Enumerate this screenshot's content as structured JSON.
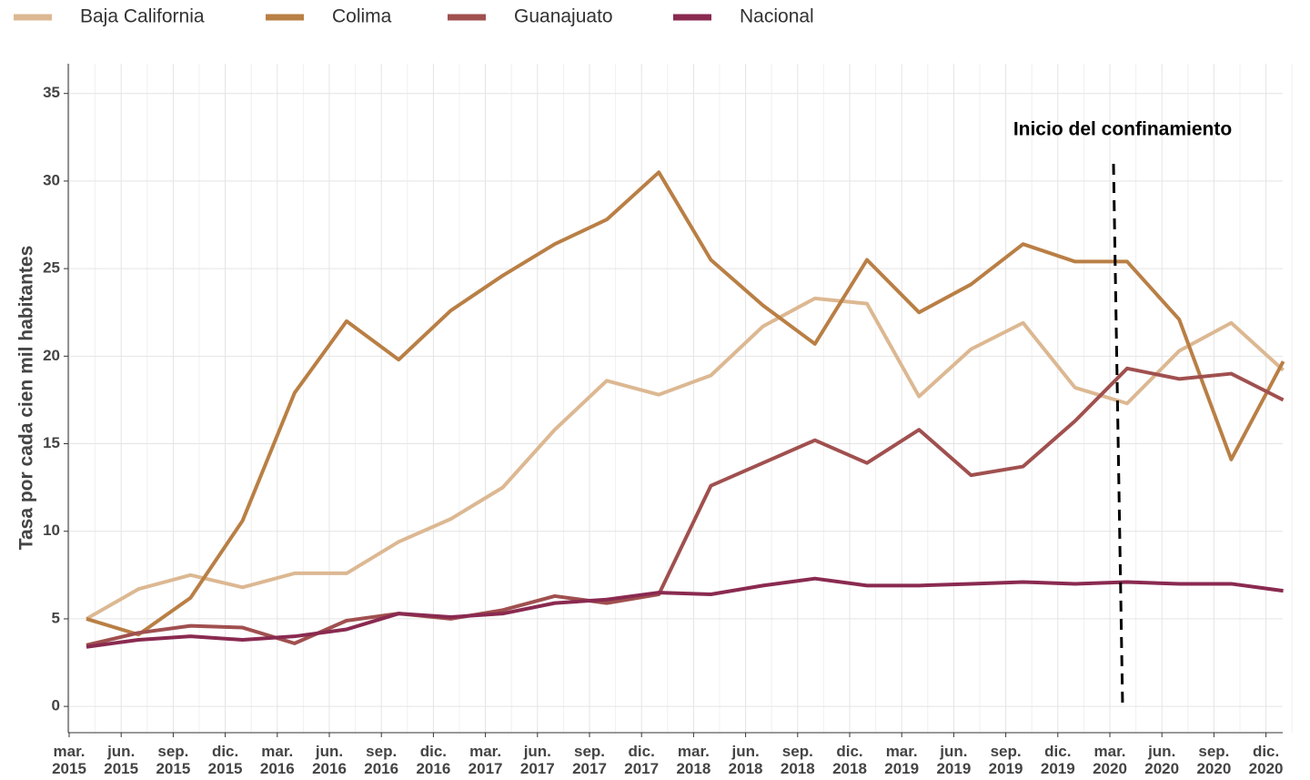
{
  "chart_data": {
    "type": "line",
    "ylabel": "Tasa por cada cien mil habitantes",
    "annotation": "Inicio del confinamiento",
    "categories": [
      "mar. 2015",
      "jun. 2015",
      "sep. 2015",
      "dic. 2015",
      "mar. 2016",
      "jun. 2016",
      "sep. 2016",
      "dic. 2016",
      "mar. 2017",
      "jun. 2017",
      "sep. 2017",
      "dic. 2017",
      "mar. 2018",
      "jun. 2018",
      "sep. 2018",
      "dic. 2018",
      "mar. 2019",
      "jun. 2019",
      "sep. 2019",
      "dic. 2019",
      "mar. 2020",
      "jun. 2020",
      "sep. 2020",
      "dic. 2020"
    ],
    "series": [
      {
        "name": "Baja California",
        "color": "#dcb892",
        "values": [
          5.0,
          6.7,
          7.5,
          6.8,
          7.6,
          7.6,
          9.4,
          10.7,
          12.5,
          15.8,
          18.6,
          17.8,
          18.9,
          21.7,
          23.3,
          23.0,
          17.7,
          20.4,
          21.9,
          18.2,
          17.3,
          20.3,
          21.9,
          19.2
        ]
      },
      {
        "name": "Colima",
        "color": "#b97f45",
        "values": [
          5.0,
          4.1,
          6.2,
          10.6,
          17.9,
          22.0,
          19.8,
          22.6,
          24.6,
          26.4,
          27.8,
          30.5,
          25.5,
          22.9,
          20.7,
          25.5,
          22.5,
          24.1,
          26.4,
          25.4,
          25.4,
          22.1,
          14.1,
          19.7
        ]
      },
      {
        "name": "Guanajuato",
        "color": "#a0504f",
        "values": [
          3.5,
          4.2,
          4.6,
          4.5,
          3.6,
          4.9,
          5.3,
          5.0,
          5.5,
          6.3,
          5.9,
          6.4,
          12.6,
          13.9,
          15.2,
          13.9,
          15.8,
          13.2,
          13.7,
          16.3,
          19.3,
          18.7,
          19.0,
          17.5
        ]
      },
      {
        "name": "Nacional",
        "color": "#8a2a50",
        "values": [
          3.4,
          3.8,
          4.0,
          3.8,
          4.0,
          4.4,
          5.3,
          5.1,
          5.3,
          5.9,
          6.1,
          6.5,
          6.4,
          6.9,
          7.3,
          6.9,
          6.9,
          7.0,
          7.1,
          7.0,
          7.1,
          7.0,
          7.0,
          6.6
        ]
      }
    ],
    "ylim": [
      -1.5,
      36.7
    ],
    "yticks": [
      0,
      5,
      10,
      15,
      20,
      25,
      30,
      35
    ],
    "grid": true
  }
}
